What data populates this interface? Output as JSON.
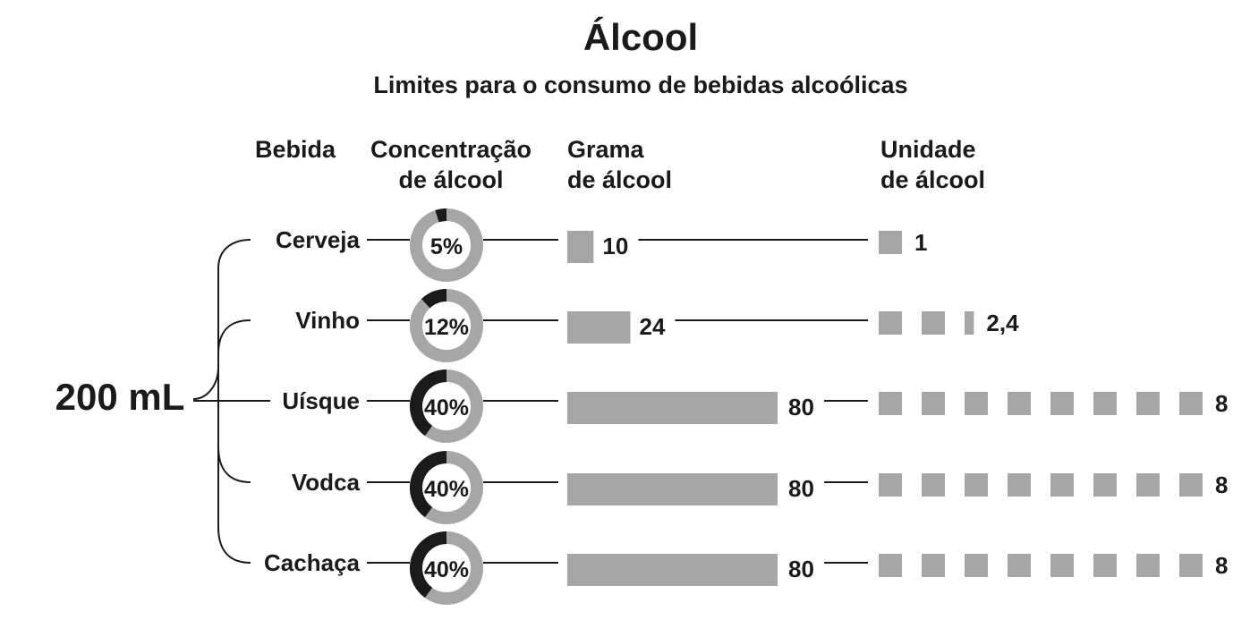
{
  "chart_data": {
    "type": "bar",
    "title": "Álcool",
    "subtitle": "Limites para o consumo de bebidas alcoólicas",
    "volume_label": "200 mL",
    "headers": {
      "bebida": "Bebida",
      "concentracao_1": "Concentração",
      "concentracao_2": "de álcool",
      "grama_1": "Grama",
      "grama_2": "de álcool",
      "unidade_1": "Unidade",
      "unidade_2": "de álcool"
    },
    "categories": [
      "Cerveja",
      "Vinho",
      "Uísque",
      "Vodca",
      "Cachaça"
    ],
    "series": [
      {
        "values": [
          5,
          12,
          40,
          40,
          40
        ],
        "labels": [
          "5%",
          "12%",
          "40%",
          "40%",
          "40%"
        ]
      },
      {
        "values": [
          10,
          24,
          80,
          80,
          80
        ],
        "labels": [
          "10",
          "24",
          "80",
          "80",
          "80"
        ]
      },
      {
        "values": [
          1,
          2.4,
          8,
          8,
          8
        ],
        "labels": [
          "1",
          "2,4",
          "8",
          "8",
          "8"
        ]
      }
    ],
    "colors": {
      "bar": "#a6a6a6",
      "ring_track": "#a6a6a6",
      "ring_fill": "#1a1a1a",
      "text": "#1a1a1a",
      "line": "#1a1a1a"
    }
  }
}
